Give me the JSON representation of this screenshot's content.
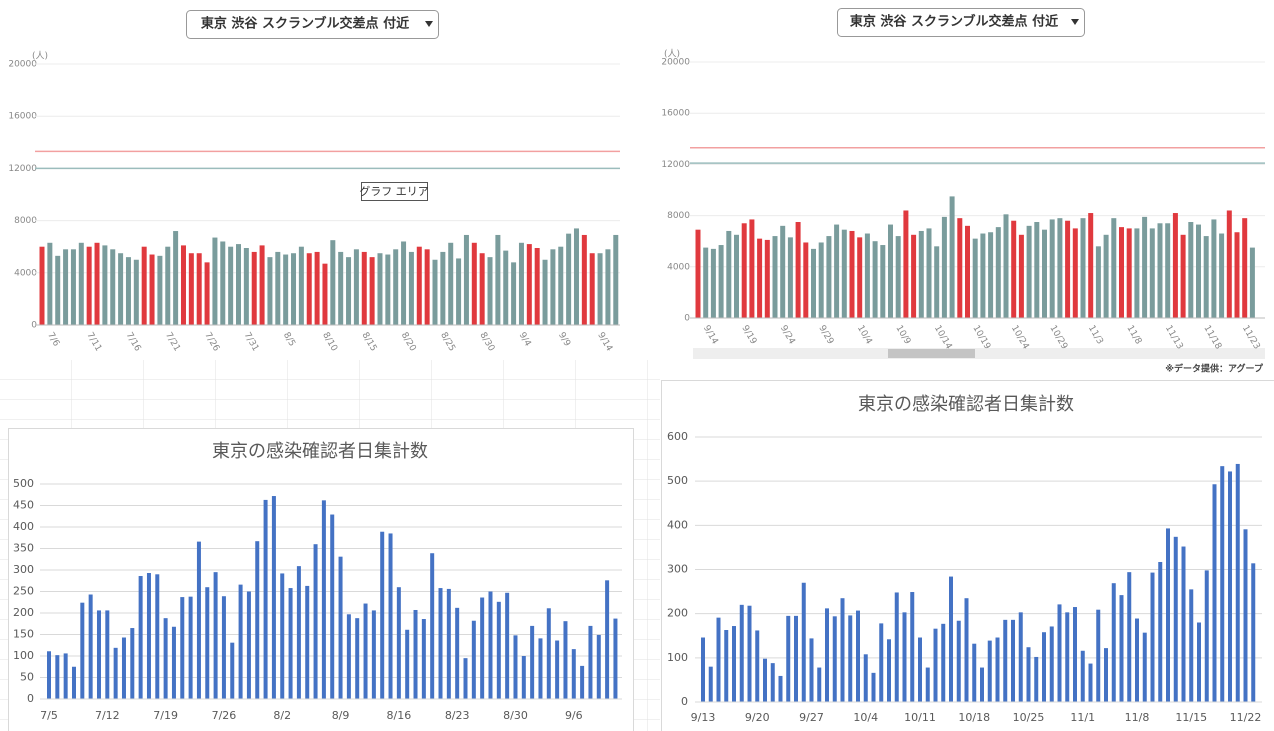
{
  "chart_data": [
    {
      "type": "bar",
      "selector": "東京 渋谷 スクランブル交差点 付近",
      "y_unit": "(人)",
      "annotation": "グラフ エリア",
      "categories": [
        null,
        "7/6",
        null,
        null,
        null,
        null,
        "7/11",
        null,
        null,
        null,
        null,
        "7/16",
        null,
        null,
        null,
        null,
        "7/21",
        null,
        null,
        null,
        null,
        "7/26",
        null,
        null,
        null,
        null,
        "7/31",
        null,
        null,
        null,
        null,
        "8/5",
        null,
        null,
        null,
        null,
        "8/10",
        null,
        null,
        null,
        null,
        "8/15",
        null,
        null,
        null,
        null,
        "8/20",
        null,
        null,
        null,
        null,
        "8/25",
        null,
        null,
        null,
        null,
        "8/30",
        null,
        null,
        null,
        null,
        "9/4",
        null,
        null,
        null,
        null,
        "9/9",
        null,
        null,
        null,
        null,
        "9/14",
        null,
        null
      ],
      "values": [
        6000,
        6300,
        5300,
        5800,
        5800,
        6300,
        6000,
        6300,
        6100,
        5800,
        5500,
        5200,
        5000,
        6000,
        5400,
        5300,
        6000,
        7200,
        6100,
        5500,
        5500,
        4800,
        6700,
        6400,
        6000,
        6200,
        5900,
        5600,
        6100,
        5200,
        5600,
        5400,
        5500,
        6000,
        5500,
        5600,
        4700,
        6500,
        5600,
        5200,
        5800,
        5600,
        5200,
        5500,
        5400,
        5800,
        6400,
        5600,
        6000,
        5800,
        5000,
        5600,
        6300,
        5100,
        6900,
        6300,
        5500,
        5200,
        6900,
        5700,
        4800,
        6300,
        6200,
        5900,
        5000,
        5800,
        6000,
        7000,
        7400,
        6900,
        5500,
        5500,
        5800,
        6900
      ],
      "colors": [
        "#e0393e",
        "#7a9c9c",
        "#7a9c9c",
        "#7a9c9c",
        "#7a9c9c",
        "#7a9c9c",
        "#e0393e",
        "#e0393e",
        "#7a9c9c",
        "#7a9c9c",
        "#7a9c9c",
        "#7a9c9c",
        "#7a9c9c",
        "#e0393e",
        "#e0393e",
        "#7a9c9c",
        "#7a9c9c",
        "#7a9c9c",
        "#e0393e",
        "#e0393e",
        "#e0393e",
        "#e0393e",
        "#7a9c9c",
        "#7a9c9c",
        "#7a9c9c",
        "#7a9c9c",
        "#7a9c9c",
        "#e0393e",
        "#e0393e",
        "#7a9c9c",
        "#7a9c9c",
        "#7a9c9c",
        "#7a9c9c",
        "#7a9c9c",
        "#e0393e",
        "#e0393e",
        "#e0393e",
        "#7a9c9c",
        "#7a9c9c",
        "#7a9c9c",
        "#7a9c9c",
        "#e0393e",
        "#e0393e",
        "#7a9c9c",
        "#7a9c9c",
        "#7a9c9c",
        "#7a9c9c",
        "#7a9c9c",
        "#e0393e",
        "#e0393e",
        "#7a9c9c",
        "#7a9c9c",
        "#7a9c9c",
        "#7a9c9c",
        "#7a9c9c",
        "#e0393e",
        "#e0393e",
        "#7a9c9c",
        "#7a9c9c",
        "#7a9c9c",
        "#7a9c9c",
        "#7a9c9c",
        "#e0393e",
        "#e0393e",
        "#7a9c9c",
        "#7a9c9c",
        "#7a9c9c",
        "#7a9c9c",
        "#7a9c9c",
        "#e0393e",
        "#e0393e",
        "#7a9c9c",
        "#7a9c9c",
        "#7a9c9c"
      ],
      "reference_lines": [
        {
          "value": 13300,
          "color": "#f2a0a0"
        },
        {
          "value": 12000,
          "color": "#9bbcbc"
        }
      ],
      "ylim": [
        0,
        20000
      ],
      "yticks": [
        0,
        4000,
        8000,
        12000,
        16000,
        20000
      ],
      "grid": true
    },
    {
      "type": "bar",
      "selector": "東京 渋谷 スクランブル交差点 付近",
      "y_unit": "(人)",
      "source": "※データ提供：アグープ",
      "categories": [
        null,
        "9/14",
        null,
        null,
        null,
        null,
        "9/19",
        null,
        null,
        null,
        null,
        "9/24",
        null,
        null,
        null,
        null,
        "9/29",
        null,
        null,
        null,
        null,
        "10/4",
        null,
        null,
        null,
        null,
        "10/9",
        null,
        null,
        null,
        null,
        "10/14",
        null,
        null,
        null,
        null,
        "10/19",
        null,
        null,
        null,
        null,
        "10/24",
        null,
        null,
        null,
        null,
        "10/29",
        null,
        null,
        null,
        null,
        "11/3",
        null,
        null,
        null,
        null,
        "11/8",
        null,
        null,
        null,
        null,
        "11/13",
        null,
        null,
        null,
        null,
        "11/18",
        null,
        null,
        null,
        null,
        "11/23",
        null
      ],
      "values": [
        6900,
        5500,
        5400,
        5700,
        6800,
        6500,
        7400,
        7700,
        6200,
        6100,
        6400,
        7200,
        6300,
        7500,
        5900,
        5400,
        5900,
        6400,
        7300,
        6900,
        6800,
        6300,
        6600,
        6000,
        5700,
        7300,
        6400,
        8400,
        6500,
        6800,
        7000,
        5600,
        7900,
        9500,
        7800,
        7200,
        6200,
        6600,
        6700,
        7100,
        8100,
        7600,
        6500,
        7200,
        7500,
        6900,
        7700,
        7800,
        7600,
        7000,
        7800,
        8200,
        5600,
        6500,
        7800,
        7100,
        7000,
        7000,
        7900,
        7000,
        7400,
        7400,
        8200,
        6500,
        7500,
        7300,
        6400,
        7700,
        6600,
        8400,
        6700,
        7800,
        5500
      ],
      "colors": [
        "#e0393e",
        "#7a9c9c",
        "#7a9c9c",
        "#7a9c9c",
        "#7a9c9c",
        "#7a9c9c",
        "#e0393e",
        "#e0393e",
        "#e0393e",
        "#e0393e",
        "#7a9c9c",
        "#7a9c9c",
        "#7a9c9c",
        "#e0393e",
        "#e0393e",
        "#7a9c9c",
        "#7a9c9c",
        "#7a9c9c",
        "#7a9c9c",
        "#7a9c9c",
        "#e0393e",
        "#e0393e",
        "#7a9c9c",
        "#7a9c9c",
        "#7a9c9c",
        "#7a9c9c",
        "#7a9c9c",
        "#e0393e",
        "#e0393e",
        "#7a9c9c",
        "#7a9c9c",
        "#7a9c9c",
        "#7a9c9c",
        "#7a9c9c",
        "#e0393e",
        "#e0393e",
        "#7a9c9c",
        "#7a9c9c",
        "#7a9c9c",
        "#7a9c9c",
        "#7a9c9c",
        "#e0393e",
        "#e0393e",
        "#7a9c9c",
        "#7a9c9c",
        "#7a9c9c",
        "#7a9c9c",
        "#7a9c9c",
        "#e0393e",
        "#e0393e",
        "#7a9c9c",
        "#e0393e",
        "#7a9c9c",
        "#7a9c9c",
        "#7a9c9c",
        "#e0393e",
        "#e0393e",
        "#7a9c9c",
        "#7a9c9c",
        "#7a9c9c",
        "#7a9c9c",
        "#7a9c9c",
        "#e0393e",
        "#e0393e",
        "#7a9c9c",
        "#7a9c9c",
        "#7a9c9c",
        "#7a9c9c",
        "#7a9c9c",
        "#e0393e",
        "#e0393e",
        "#e0393e",
        "#7a9c9c"
      ],
      "reference_lines": [
        {
          "value": 13300,
          "color": "#f2a0a0"
        },
        {
          "value": 12100,
          "color": "#9bbcbc"
        }
      ],
      "ylim": [
        0,
        20000
      ],
      "yticks": [
        0,
        4000,
        8000,
        12000,
        16000,
        20000
      ],
      "grid": true
    },
    {
      "type": "bar",
      "title": "東京の感染確認者日集計数",
      "color": "#4472c4",
      "categories": [
        "7/5",
        null,
        null,
        null,
        null,
        null,
        null,
        "7/12",
        null,
        null,
        null,
        null,
        null,
        null,
        "7/19",
        null,
        null,
        null,
        null,
        null,
        null,
        "7/26",
        null,
        null,
        null,
        null,
        null,
        null,
        "8/2",
        null,
        null,
        null,
        null,
        null,
        null,
        "8/9",
        null,
        null,
        null,
        null,
        null,
        null,
        "8/16",
        null,
        null,
        null,
        null,
        null,
        null,
        "8/23",
        null,
        null,
        null,
        null,
        null,
        null,
        "8/30",
        null,
        null,
        null,
        null,
        null,
        null,
        "9/6",
        null,
        null,
        null,
        null,
        null
      ],
      "values": [
        111,
        102,
        106,
        75,
        224,
        243,
        206,
        206,
        119,
        143,
        165,
        286,
        293,
        290,
        188,
        168,
        237,
        238,
        366,
        260,
        295,
        239,
        131,
        266,
        250,
        367,
        463,
        472,
        292,
        258,
        309,
        263,
        360,
        462,
        429,
        331,
        197,
        188,
        222,
        206,
        389,
        385,
        260,
        161,
        207,
        186,
        339,
        258,
        256,
        212,
        95,
        182,
        236,
        250,
        226,
        247,
        148,
        100,
        170,
        141,
        211,
        136,
        181,
        116,
        77,
        170,
        149,
        276,
        187
      ],
      "ylim": [
        0,
        500
      ],
      "yticks": [
        0,
        50,
        100,
        150,
        200,
        250,
        300,
        350,
        400,
        450,
        500
      ],
      "grid": true
    },
    {
      "type": "bar",
      "title": "東京の感染確認者日集計数",
      "color": "#4472c4",
      "categories": [
        "9/13",
        null,
        null,
        null,
        null,
        null,
        null,
        "9/20",
        null,
        null,
        null,
        null,
        null,
        null,
        "9/27",
        null,
        null,
        null,
        null,
        null,
        null,
        "10/4",
        null,
        null,
        null,
        null,
        null,
        null,
        "10/11",
        null,
        null,
        null,
        null,
        null,
        null,
        "10/18",
        null,
        null,
        null,
        null,
        null,
        null,
        "10/25",
        null,
        null,
        null,
        null,
        null,
        null,
        "11/1",
        null,
        null,
        null,
        null,
        null,
        null,
        "11/8",
        null,
        null,
        null,
        null,
        null,
        null,
        "11/15",
        null,
        null,
        null,
        null,
        null,
        null,
        "11/22",
        null
      ],
      "values": [
        146,
        80,
        191,
        163,
        172,
        220,
        218,
        162,
        98,
        88,
        59,
        195,
        195,
        270,
        144,
        78,
        212,
        194,
        235,
        196,
        207,
        108,
        66,
        178,
        142,
        248,
        203,
        249,
        146,
        78,
        166,
        177,
        284,
        184,
        235,
        132,
        78,
        139,
        146,
        186,
        186,
        203,
        124,
        102,
        158,
        171,
        221,
        203,
        215,
        116,
        87,
        209,
        122,
        269,
        242,
        294,
        189,
        157,
        293,
        317,
        393,
        374,
        352,
        255,
        180,
        298,
        493,
        534,
        522,
        539,
        391,
        314
      ],
      "ylim": [
        0,
        600
      ],
      "yticks": [
        0,
        100,
        200,
        300,
        400,
        500,
        600
      ],
      "grid": true
    }
  ]
}
